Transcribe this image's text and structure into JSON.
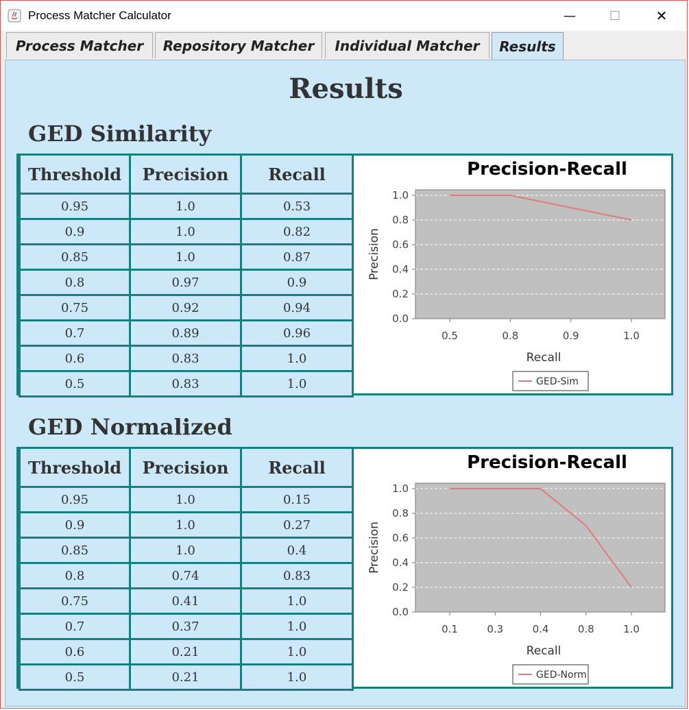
{
  "window": {
    "title": "Process Matcher Calculator",
    "minimize_glyph": "—",
    "maximize_glyph": "☐",
    "close_glyph": "✕"
  },
  "tabs": [
    {
      "label": "Process Matcher"
    },
    {
      "label": "Repository Matcher"
    },
    {
      "label": "Individual Matcher"
    },
    {
      "label": "Results"
    }
  ],
  "page": {
    "title": "Results"
  },
  "sections": [
    {
      "title": "GED Similarity",
      "headers": [
        "Threshold",
        "Precision",
        "Recall"
      ],
      "rows": [
        [
          "0.95",
          "1.0",
          "0.53"
        ],
        [
          "0.9",
          "1.0",
          "0.82"
        ],
        [
          "0.85",
          "1.0",
          "0.87"
        ],
        [
          "0.8",
          "0.97",
          "0.9"
        ],
        [
          "0.75",
          "0.92",
          "0.94"
        ],
        [
          "0.7",
          "0.89",
          "0.96"
        ],
        [
          "0.6",
          "0.83",
          "1.0"
        ],
        [
          "0.5",
          "0.83",
          "1.0"
        ]
      ]
    },
    {
      "title": "GED Normalized",
      "headers": [
        "Threshold",
        "Precision",
        "Recall"
      ],
      "rows": [
        [
          "0.95",
          "1.0",
          "0.15"
        ],
        [
          "0.9",
          "1.0",
          "0.27"
        ],
        [
          "0.85",
          "1.0",
          "0.4"
        ],
        [
          "0.8",
          "0.74",
          "0.83"
        ],
        [
          "0.75",
          "0.41",
          "1.0"
        ],
        [
          "0.7",
          "0.37",
          "1.0"
        ],
        [
          "0.6",
          "0.21",
          "1.0"
        ],
        [
          "0.5",
          "0.21",
          "1.0"
        ]
      ]
    }
  ],
  "chart_data": [
    {
      "type": "line",
      "title": "Precision-Recall",
      "xlabel": "Recall",
      "ylabel": "Precision",
      "categories": [
        "0.5",
        "0.8",
        "0.9",
        "1.0"
      ],
      "yticks": [
        "0.0",
        "0.2",
        "0.4",
        "0.6",
        "0.8",
        "1.0"
      ],
      "ylim": [
        0,
        1.0
      ],
      "series": [
        {
          "name": "GED-Sim",
          "values": [
            1.0,
            1.0,
            0.9,
            0.8
          ],
          "color": "#e07b7b"
        }
      ],
      "grid": true,
      "legend": "bottom",
      "plot_background": "#c0c0c0"
    },
    {
      "type": "line",
      "title": "Precision-Recall",
      "xlabel": "Recall",
      "ylabel": "Precision",
      "categories": [
        "0.1",
        "0.3",
        "0.4",
        "0.8",
        "1.0"
      ],
      "yticks": [
        "0.0",
        "0.2",
        "0.4",
        "0.6",
        "0.8",
        "1.0"
      ],
      "ylim": [
        0,
        1.0
      ],
      "series": [
        {
          "name": "GED-Norm",
          "values": [
            1.0,
            1.0,
            1.0,
            0.7,
            0.2
          ],
          "color": "#e07b7b"
        }
      ],
      "grid": true,
      "legend": "bottom",
      "plot_background": "#c0c0c0"
    }
  ]
}
